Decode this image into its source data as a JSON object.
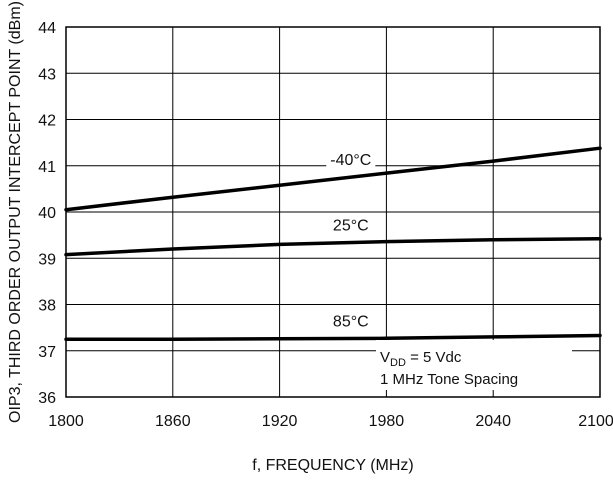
{
  "chart_data": {
    "type": "line",
    "xlabel": "f, FREQUENCY (MHz)",
    "ylabel": "OIP3, THIRD ORDER OUTPUT INTERCEPT POINT (dBm)",
    "xlim": [
      1800,
      2100
    ],
    "ylim": [
      36,
      44
    ],
    "x_ticks": [
      1800,
      1860,
      1920,
      1980,
      2040,
      2100
    ],
    "y_ticks": [
      36,
      37,
      38,
      39,
      40,
      41,
      42,
      43,
      44
    ],
    "x_tick_labels": [
      "1800",
      "1860",
      "1920",
      "1980",
      "2040",
      "2100"
    ],
    "y_tick_labels": [
      "36",
      "37",
      "38",
      "39",
      "40",
      "41",
      "42",
      "43",
      "44"
    ],
    "grid": true,
    "x": [
      1800,
      1860,
      1920,
      1980,
      2040,
      2100
    ],
    "series": [
      {
        "name": "-40°C",
        "values": [
          40.05,
          40.32,
          40.58,
          40.84,
          41.1,
          41.38
        ]
      },
      {
        "name": "25°C",
        "values": [
          39.08,
          39.2,
          39.3,
          39.36,
          39.4,
          39.42
        ]
      },
      {
        "name": "85°C",
        "values": [
          37.25,
          37.25,
          37.26,
          37.27,
          37.3,
          37.33
        ]
      }
    ],
    "annotation": {
      "line1_prefix": "V",
      "line1_sub": "DD",
      "line1_suffix": " = 5 Vdc",
      "line2": "1 MHz Tone Spacing"
    }
  }
}
